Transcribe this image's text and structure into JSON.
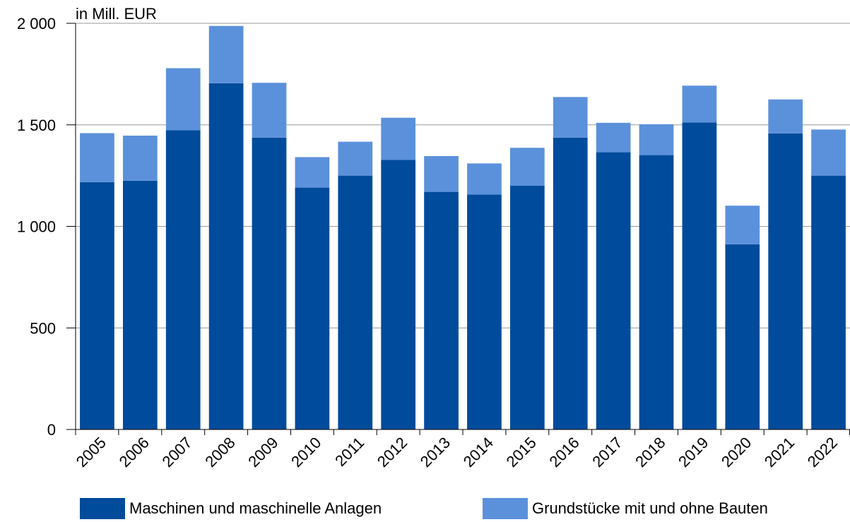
{
  "chart_data": {
    "type": "bar",
    "stacked": true,
    "unit_label": "in Mill. EUR",
    "categories": [
      "2005",
      "2006",
      "2007",
      "2008",
      "2009",
      "2010",
      "2011",
      "2012",
      "2013",
      "2014",
      "2015",
      "2016",
      "2017",
      "2018",
      "2019",
      "2020",
      "2021",
      "2022"
    ],
    "series": [
      {
        "name": "Maschinen und maschinelle Anlagen",
        "color": "#004b9b",
        "values": [
          1218,
          1225,
          1473,
          1705,
          1437,
          1191,
          1250,
          1327,
          1170,
          1157,
          1200,
          1437,
          1365,
          1351,
          1512,
          912,
          1458,
          1250
        ]
      },
      {
        "name": "Grundstücke mit und ohne Bauten",
        "color": "#5b91db",
        "values": [
          241,
          222,
          306,
          282,
          270,
          150,
          167,
          208,
          176,
          153,
          187,
          200,
          145,
          152,
          181,
          190,
          167,
          227
        ]
      }
    ],
    "ylim": [
      0,
      2000
    ],
    "yticks": [
      0,
      500,
      1000,
      1500,
      2000
    ],
    "ytick_labels": [
      "0",
      "500",
      "1 000",
      "1 500",
      "2 000"
    ],
    "grid": true,
    "legend_position": "bottom"
  }
}
